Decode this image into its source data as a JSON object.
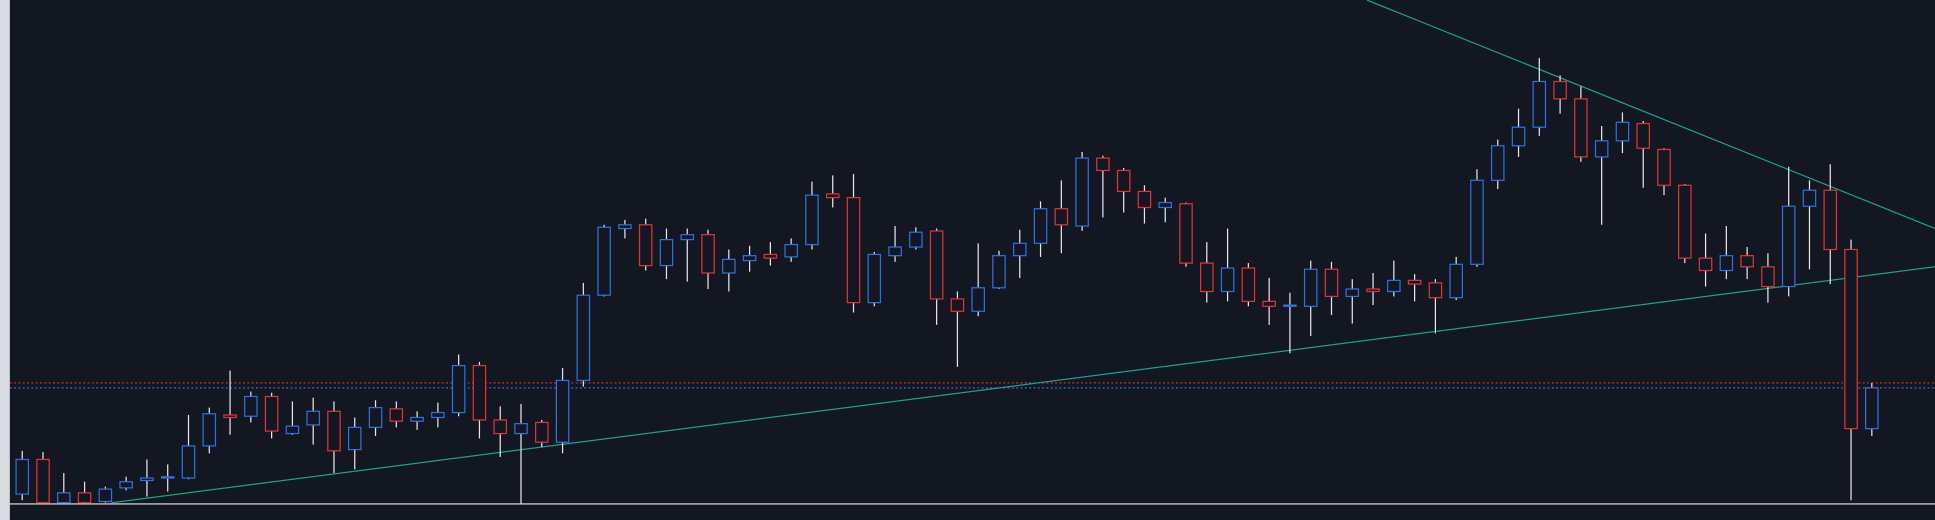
{
  "chart_data": {
    "type": "candlestick",
    "up_color": "#2f6fe0",
    "down_color": "#e0323a",
    "background": "#131722",
    "xlim": [
      -1.07,
      92.04
    ],
    "ylim": [
      0,
      421
    ],
    "open": [
      21,
      49,
      14,
      22,
      15,
      26,
      32,
      34,
      34,
      60,
      85,
      84,
      100,
      70,
      77,
      88,
      57,
      75,
      90,
      80,
      83,
      87,
      125,
      81,
      70,
      79,
      63,
      113,
      182,
      236,
      239,
      206,
      227,
      231,
      200,
      210,
      215,
      213,
      223,
      264,
      261,
      176,
      214,
      221,
      234,
      179,
      169,
      188,
      214,
      224,
      252,
      238,
      293,
      283,
      266,
      253,
      256,
      208,
      185,
      204,
      177,
      173,
      173,
      203,
      181,
      187,
      185,
      194,
      192,
      180,
      207,
      275,
      303,
      318,
      355,
      341,
      294,
      307,
      321,
      300,
      271,
      212,
      202,
      214,
      205,
      189,
      254,
      267,
      219,
      74
    ],
    "high": [
      56,
      55,
      38,
      31,
      27,
      35,
      49,
      45,
      85,
      91,
      121,
      104,
      103,
      96,
      99,
      96,
      83,
      97,
      96,
      88,
      95,
      134,
      128,
      92,
      94,
      81,
      123,
      192,
      239,
      243,
      244,
      236,
      236,
      235,
      219,
      222,
      225,
      228,
      274,
      279,
      280,
      217,
      238,
      237,
      236,
      185,
      224,
      218,
      235,
      258,
      275,
      298,
      295,
      285,
      271,
      261,
      257,
      225,
      236,
      208,
      196,
      184,
      210,
      209,
      195,
      200,
      210,
      199,
      195,
      213,
      284,
      308,
      333,
      374,
      360,
      351,
      319,
      330,
      323,
      301,
      272,
      232,
      238,
      221,
      216,
      286,
      275,
      288,
      227,
      111
    ],
    "low": [
      16,
      13,
      13,
      13,
      14,
      24,
      19,
      23,
      33,
      54,
      69,
      79,
      66,
      69,
      61,
      38,
      41,
      68,
      75,
      73,
      75,
      84,
      66,
      51,
      13,
      59,
      54,
      108,
      181,
      228,
      202,
      195,
      193,
      187,
      185,
      201,
      206,
      209,
      219,
      253,
      168,
      173,
      209,
      219,
      158,
      124,
      165,
      187,
      196,
      213,
      216,
      234,
      245,
      249,
      240,
      241,
      205,
      176,
      177,
      173,
      158,
      135,
      149,
      166,
      159,
      174,
      181,
      177,
      151,
      178,
      205,
      268,
      294,
      311,
      329,
      290,
      239,
      297,
      269,
      263,
      208,
      189,
      195,
      195,
      176,
      181,
      203,
      191,
      16,
      68
    ],
    "close": [
      49,
      14,
      22,
      14,
      25,
      31,
      34,
      35,
      60,
      86,
      83,
      100,
      72,
      76,
      88,
      56,
      75,
      91,
      80,
      83,
      87,
      125,
      81,
      70,
      78,
      63,
      113,
      182,
      237,
      239,
      206,
      227,
      231,
      200,
      211,
      214,
      212,
      223,
      263,
      261,
      176,
      215,
      221,
      233,
      179,
      169,
      188,
      214,
      224,
      252,
      239,
      293,
      283,
      266,
      253,
      257,
      208,
      185,
      204,
      177,
      173,
      174,
      203,
      181,
      187,
      185,
      194,
      191,
      180,
      207,
      275,
      303,
      318,
      355,
      341,
      294,
      307,
      322,
      301,
      271,
      212,
      202,
      214,
      205,
      189,
      254,
      267,
      219,
      74,
      107
    ],
    "trendlines": [
      {
        "color": "#1f9e8a",
        "x": [
          64.7,
          92.04
        ],
        "values": [
          421,
          236
        ]
      },
      {
        "color": "#1f9e8a",
        "x": [
          4.3,
          92.04
        ],
        "values": [
          14,
          205
        ]
      }
    ],
    "hlines": [
      {
        "color": "#c0392b",
        "value": 111
      },
      {
        "color": "#3a6fd8",
        "value": 107
      }
    ]
  }
}
